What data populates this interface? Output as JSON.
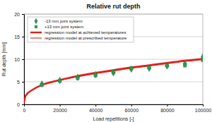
{
  "chart_data": {
    "type": "line",
    "title": "Relative rut depth",
    "x_label": "Load repetitions [-]",
    "y_label": "Rut depth [mm]",
    "x": [
      0,
      1000,
      5000,
      10000,
      20000,
      30000,
      40000,
      50000,
      60000,
      70000,
      80000,
      90000,
      100000
    ],
    "xlim": [
      0,
      100000
    ],
    "xticks": [
      0,
      20000,
      40000,
      60000,
      80000,
      100000
    ],
    "ylim": [
      0,
      20
    ],
    "yticks": [
      0,
      5,
      10,
      15,
      20
    ],
    "grid": true,
    "legend": "upper left",
    "series": [
      {
        "name": "-13 mm joint system",
        "type": "scatter",
        "marker": "diamond",
        "color": "#2e9e4f",
        "values": [
          null,
          null,
          null,
          4.5,
          5.3,
          6.0,
          6.6,
          7.0,
          7.8,
          8.0,
          8.5,
          9.0,
          10.5
        ]
      },
      {
        "name": "+13 mm joint system",
        "type": "scatter",
        "marker": "square",
        "color": "#2e9e4f",
        "values": [
          null,
          null,
          null,
          4.3,
          5.2,
          5.8,
          6.4,
          7.2,
          8.0,
          8.2,
          8.6,
          8.6,
          9.8
        ]
      },
      {
        "name": "regression model at achieved temperatures",
        "type": "line",
        "line_style": "thick",
        "color": "#e0201b",
        "values": [
          0.3,
          2.0,
          3.3,
          4.3,
          5.4,
          6.3,
          7.0,
          7.6,
          8.2,
          8.7,
          9.2,
          9.7,
          10.1
        ]
      },
      {
        "name": "regression model at prescribed temperature",
        "type": "line",
        "line_style": "solid",
        "color": "#e0201b",
        "values": [
          0.3,
          1.9,
          3.2,
          4.2,
          5.3,
          6.1,
          6.8,
          7.4,
          8.0,
          8.5,
          9.0,
          9.5,
          9.9
        ]
      }
    ]
  }
}
